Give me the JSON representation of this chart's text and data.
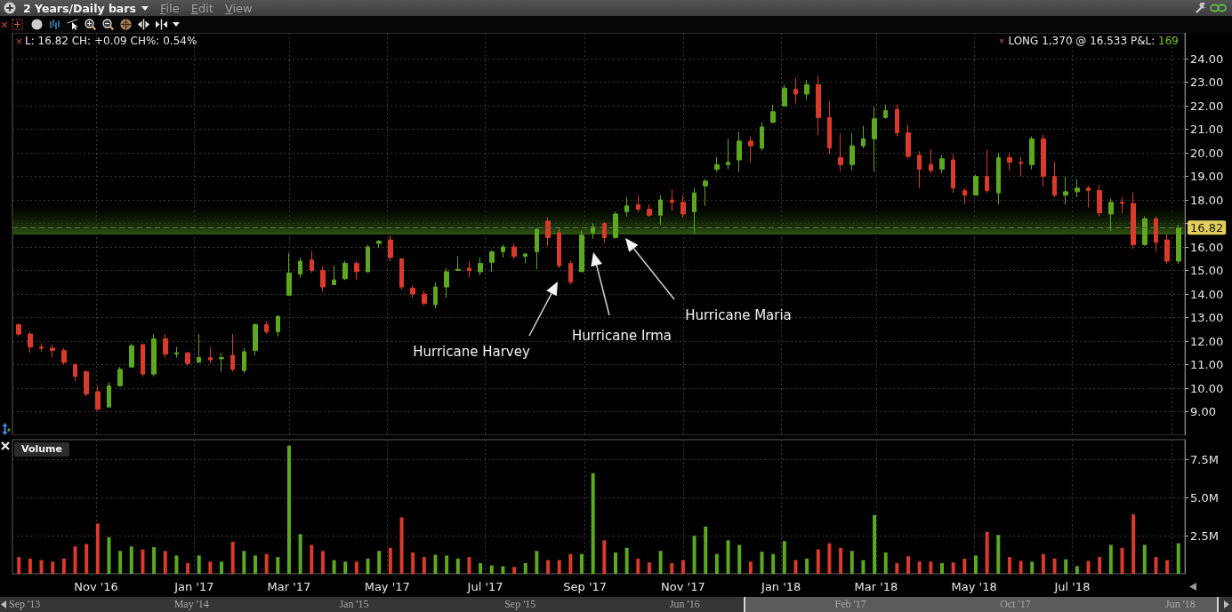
{
  "chart_data": [
    {
      "type": "candlestick",
      "title": "2 Years/Daily bars",
      "x": [
        "2016-09-14",
        "2016-09-21",
        "2016-09-28",
        "2016-10-05",
        "2016-10-12",
        "2016-10-19",
        "2016-10-26",
        "2016-11-02",
        "2016-11-09",
        "2016-11-16",
        "2016-11-23",
        "2016-11-30",
        "2016-12-07",
        "2016-12-14",
        "2016-12-21",
        "2016-12-28",
        "2017-01-04",
        "2017-01-11",
        "2017-01-18",
        "2017-01-25",
        "2017-02-01",
        "2017-02-08",
        "2017-02-15",
        "2017-02-22",
        "2017-03-01",
        "2017-03-08",
        "2017-03-15",
        "2017-03-22",
        "2017-03-29",
        "2017-04-05",
        "2017-04-12",
        "2017-04-19",
        "2017-04-26",
        "2017-05-03",
        "2017-05-10",
        "2017-05-17",
        "2017-05-24",
        "2017-05-31",
        "2017-06-07",
        "2017-06-14",
        "2017-06-21",
        "2017-06-28",
        "2017-07-05",
        "2017-07-12",
        "2017-07-19",
        "2017-07-26",
        "2017-08-02",
        "2017-08-09",
        "2017-08-16",
        "2017-08-23",
        "2017-08-30",
        "2017-09-06",
        "2017-09-13",
        "2017-09-20",
        "2017-09-27",
        "2017-10-04",
        "2017-10-11",
        "2017-10-18",
        "2017-10-25",
        "2017-11-01",
        "2017-11-08",
        "2017-11-15",
        "2017-11-22",
        "2017-11-29",
        "2017-12-06",
        "2017-12-13",
        "2017-12-20",
        "2017-12-27",
        "2018-01-03",
        "2018-01-10",
        "2018-01-17",
        "2018-01-24",
        "2018-01-31",
        "2018-02-07",
        "2018-02-14",
        "2018-02-21",
        "2018-02-28",
        "2018-03-07",
        "2018-03-14",
        "2018-03-21",
        "2018-03-28",
        "2018-04-04",
        "2018-04-11",
        "2018-04-18",
        "2018-04-25",
        "2018-05-02",
        "2018-05-09",
        "2018-05-16",
        "2018-05-23",
        "2018-05-30",
        "2018-06-06",
        "2018-06-13",
        "2018-06-20",
        "2018-06-27",
        "2018-07-04",
        "2018-07-11",
        "2018-07-18",
        "2018-07-25",
        "2018-08-01",
        "2018-08-08",
        "2018-08-15",
        "2018-08-22",
        "2018-08-29",
        "2018-09-05"
      ],
      "ohlc": [
        [
          12.7,
          12.75,
          12.2,
          12.3
        ],
        [
          12.3,
          12.4,
          11.5,
          11.75
        ],
        [
          11.75,
          11.9,
          11.55,
          11.7
        ],
        [
          11.7,
          11.85,
          11.3,
          11.6
        ],
        [
          11.6,
          11.7,
          11.0,
          11.1
        ],
        [
          11.0,
          11.05,
          10.3,
          10.5
        ],
        [
          10.7,
          10.75,
          9.65,
          9.75
        ],
        [
          9.85,
          10.1,
          9.06,
          9.1
        ],
        [
          9.2,
          10.25,
          9.2,
          10.1
        ],
        [
          10.1,
          10.9,
          10.1,
          10.8
        ],
        [
          10.9,
          11.9,
          10.9,
          11.8
        ],
        [
          11.85,
          11.9,
          10.5,
          10.6
        ],
        [
          10.6,
          12.3,
          10.5,
          12.1
        ],
        [
          12.1,
          12.3,
          11.3,
          11.45
        ],
        [
          11.45,
          11.75,
          11.3,
          11.5
        ],
        [
          11.5,
          11.55,
          10.95,
          11.05
        ],
        [
          11.1,
          12.3,
          11.1,
          11.3
        ],
        [
          11.3,
          11.75,
          11.05,
          11.2
        ],
        [
          11.25,
          11.5,
          10.7,
          11.3
        ],
        [
          11.4,
          12.3,
          10.7,
          10.8
        ],
        [
          10.75,
          11.7,
          10.65,
          11.55
        ],
        [
          11.6,
          12.75,
          11.4,
          12.7
        ],
        [
          12.7,
          12.85,
          12.3,
          12.4
        ],
        [
          12.4,
          13.1,
          12.2,
          13.05
        ],
        [
          13.95,
          15.75,
          13.95,
          14.9
        ],
        [
          14.85,
          15.55,
          14.7,
          15.4
        ],
        [
          15.45,
          15.82,
          14.9,
          15.0
        ],
        [
          15.0,
          15.15,
          14.1,
          14.3
        ],
        [
          14.4,
          15.2,
          14.4,
          14.6
        ],
        [
          14.65,
          15.4,
          14.6,
          15.3
        ],
        [
          15.3,
          15.4,
          14.6,
          14.95
        ],
        [
          14.95,
          16.1,
          14.9,
          16.0
        ],
        [
          16.15,
          16.3,
          15.95,
          16.25
        ],
        [
          16.3,
          16.5,
          15.4,
          15.55
        ],
        [
          15.5,
          15.5,
          14.2,
          14.3
        ],
        [
          14.25,
          14.35,
          13.85,
          14.0
        ],
        [
          14.0,
          14.15,
          13.5,
          13.6
        ],
        [
          13.55,
          14.5,
          13.4,
          14.3
        ],
        [
          14.3,
          15.1,
          13.85,
          14.95
        ],
        [
          15.0,
          15.6,
          15.0,
          15.05
        ],
        [
          15.1,
          15.4,
          14.7,
          15.0
        ],
        [
          14.95,
          15.55,
          14.8,
          15.3
        ],
        [
          15.35,
          15.85,
          14.95,
          15.8
        ],
        [
          15.8,
          16.1,
          15.55,
          16.0
        ],
        [
          16.0,
          16.15,
          15.5,
          15.6
        ],
        [
          15.6,
          15.75,
          15.3,
          15.7
        ],
        [
          15.8,
          16.8,
          15.05,
          16.75
        ],
        [
          17.1,
          17.25,
          16.05,
          16.4
        ],
        [
          16.6,
          16.8,
          15.1,
          15.2
        ],
        [
          15.3,
          15.42,
          14.41,
          14.5
        ],
        [
          14.95,
          16.7,
          14.95,
          16.5
        ],
        [
          16.6,
          17.0,
          16.35,
          16.85
        ],
        [
          17.0,
          17.05,
          16.17,
          16.4
        ],
        [
          16.4,
          17.5,
          16.35,
          17.4
        ],
        [
          17.5,
          18.12,
          17.3,
          17.75
        ],
        [
          17.8,
          18.2,
          17.5,
          17.6
        ],
        [
          17.6,
          17.8,
          17.3,
          17.35
        ],
        [
          17.35,
          18.2,
          16.95,
          18.0
        ],
        [
          18.0,
          18.45,
          17.55,
          17.9
        ],
        [
          17.9,
          18.2,
          17.24,
          17.4
        ],
        [
          17.5,
          18.5,
          16.55,
          18.3
        ],
        [
          18.6,
          18.9,
          17.75,
          18.8
        ],
        [
          19.3,
          19.82,
          19.2,
          19.5
        ],
        [
          19.5,
          20.6,
          19.3,
          19.6
        ],
        [
          19.7,
          20.9,
          19.2,
          20.5
        ],
        [
          20.5,
          20.7,
          19.6,
          20.3
        ],
        [
          20.2,
          21.3,
          20.1,
          21.1
        ],
        [
          21.3,
          22.05,
          21.25,
          21.75
        ],
        [
          22.0,
          22.9,
          21.95,
          22.75
        ],
        [
          22.7,
          23.17,
          22.1,
          22.5
        ],
        [
          22.5,
          23.1,
          22.25,
          22.9
        ],
        [
          22.9,
          23.28,
          20.75,
          21.5
        ],
        [
          21.5,
          22.2,
          19.95,
          20.2
        ],
        [
          19.8,
          20.83,
          19.19,
          19.5
        ],
        [
          19.5,
          20.83,
          19.26,
          20.3
        ],
        [
          20.3,
          21.15,
          20.2,
          20.6
        ],
        [
          20.6,
          21.96,
          19.19,
          21.45
        ],
        [
          21.5,
          22.05,
          21.45,
          21.8
        ],
        [
          21.85,
          22.06,
          20.7,
          20.85
        ],
        [
          20.85,
          21.2,
          19.75,
          19.85
        ],
        [
          19.9,
          20.07,
          18.5,
          19.3
        ],
        [
          19.5,
          20.15,
          19.13,
          19.25
        ],
        [
          19.3,
          19.9,
          19.13,
          19.75
        ],
        [
          19.7,
          19.95,
          18.3,
          18.5
        ],
        [
          18.4,
          18.5,
          17.81,
          18.2
        ],
        [
          18.2,
          19.07,
          18.2,
          19.0
        ],
        [
          19.0,
          20.13,
          18.3,
          18.4
        ],
        [
          18.3,
          20.0,
          17.81,
          19.8
        ],
        [
          19.8,
          20.0,
          19.25,
          19.6
        ],
        [
          19.6,
          19.82,
          19.0,
          19.55
        ],
        [
          19.5,
          20.7,
          19.3,
          20.6
        ],
        [
          20.6,
          20.77,
          18.57,
          19.0
        ],
        [
          19.0,
          19.63,
          18.12,
          18.2
        ],
        [
          18.2,
          19.0,
          17.81,
          18.35
        ],
        [
          18.35,
          18.88,
          18.12,
          18.5
        ],
        [
          18.5,
          18.6,
          17.68,
          18.4
        ],
        [
          18.4,
          18.63,
          17.31,
          17.45
        ],
        [
          17.4,
          18.06,
          16.68,
          17.9
        ],
        [
          17.9,
          18.12,
          17.43,
          17.85
        ],
        [
          17.85,
          18.31,
          15.92,
          16.1
        ],
        [
          16.1,
          17.31,
          16.05,
          17.2
        ],
        [
          17.2,
          17.3,
          15.8,
          16.2
        ],
        [
          16.3,
          16.55,
          15.29,
          15.4
        ],
        [
          15.4,
          16.93,
          15.29,
          16.82
        ]
      ],
      "colors": [
        "#d93a2b",
        "#d93a2b",
        "#d93a2b",
        "#d93a2b",
        "#d93a2b",
        "#d93a2b",
        "#d93a2b",
        "#d93a2b",
        "#5ca81e",
        "#5ca81e",
        "#5ca81e",
        "#d93a2b",
        "#5ca81e",
        "#d93a2b",
        "#5ca81e",
        "#d93a2b",
        "#5ca81e",
        "#d93a2b",
        "#5ca81e",
        "#d93a2b",
        "#5ca81e",
        "#5ca81e",
        "#d93a2b",
        "#5ca81e",
        "#5ca81e",
        "#5ca81e",
        "#d93a2b",
        "#d93a2b",
        "#5ca81e",
        "#5ca81e",
        "#d93a2b",
        "#5ca81e",
        "#5ca81e",
        "#d93a2b",
        "#d93a2b",
        "#d93a2b",
        "#d93a2b",
        "#5ca81e",
        "#5ca81e",
        "#5ca81e",
        "#d93a2b",
        "#5ca81e",
        "#5ca81e",
        "#5ca81e",
        "#d93a2b",
        "#5ca81e",
        "#5ca81e",
        "#d93a2b",
        "#d93a2b",
        "#d93a2b",
        "#5ca81e",
        "#5ca81e",
        "#d93a2b",
        "#5ca81e",
        "#5ca81e",
        "#d93a2b",
        "#d93a2b",
        "#5ca81e",
        "#d93a2b",
        "#d93a2b",
        "#5ca81e",
        "#5ca81e",
        "#5ca81e",
        "#5ca81e",
        "#5ca81e",
        "#d93a2b",
        "#5ca81e",
        "#5ca81e",
        "#5ca81e",
        "#d93a2b",
        "#5ca81e",
        "#d93a2b",
        "#d93a2b",
        "#d93a2b",
        "#5ca81e",
        "#5ca81e",
        "#5ca81e",
        "#5ca81e",
        "#d93a2b",
        "#d93a2b",
        "#d93a2b",
        "#d93a2b",
        "#5ca81e",
        "#d93a2b",
        "#d93a2b",
        "#5ca81e",
        "#d93a2b",
        "#5ca81e",
        "#d93a2b",
        "#d93a2b",
        "#5ca81e",
        "#d93a2b",
        "#d93a2b",
        "#5ca81e",
        "#5ca81e",
        "#d93a2b",
        "#d93a2b",
        "#5ca81e",
        "#d93a2b",
        "#d93a2b",
        "#5ca81e",
        "#d93a2b",
        "#d93a2b",
        "#5ca81e"
      ],
      "xlim": [
        "2016-09-10",
        "2018-09-09"
      ],
      "xticks": [
        {
          "value": "2016-11-01",
          "label": null
        },
        {
          "value": "2017-01-01",
          "label": null
        },
        {
          "value": "2017-03-01",
          "label": null
        },
        {
          "value": "2017-05-01",
          "label": null
        },
        {
          "value": "2017-07-01",
          "label": null
        },
        {
          "value": "2017-09-01",
          "label": null
        },
        {
          "value": "2017-11-01",
          "label": null
        },
        {
          "value": "2018-01-01",
          "label": null
        },
        {
          "value": "2018-03-01",
          "label": null
        },
        {
          "value": "2018-05-01",
          "label": null
        },
        {
          "value": "2018-07-01",
          "label": null
        },
        {
          "value": "2018-09-01",
          "label": null
        }
      ],
      "ylim": [
        8,
        25.1
      ],
      "yticks": [
        {
          "value": 9,
          "label": "9.00"
        },
        {
          "value": 10,
          "label": "10.00"
        },
        {
          "value": 11,
          "label": "11.00"
        },
        {
          "value": 12,
          "label": "12.00"
        },
        {
          "value": 13,
          "label": "13.00"
        },
        {
          "value": 14,
          "label": "14.00"
        },
        {
          "value": 15,
          "label": "15.00"
        },
        {
          "value": 16,
          "label": "16.00"
        },
        {
          "value": 17,
          "label": null
        },
        {
          "value": 18,
          "label": "18.00"
        },
        {
          "value": 19,
          "label": "19.00"
        },
        {
          "value": 20,
          "label": "20.00"
        },
        {
          "value": 21,
          "label": "21.00"
        },
        {
          "value": 22,
          "label": "22.00"
        },
        {
          "value": 23,
          "label": "23.00"
        },
        {
          "value": 24,
          "label": "24.00"
        }
      ],
      "grid": true,
      "tick_labels": "y",
      "ref_lines": [
        {
          "axis": "y",
          "value": 16.82,
          "label": "16.82",
          "line_style": "dashed",
          "color": "#56704a"
        }
      ],
      "bands": [
        {
          "axis": "y",
          "from": 16.533,
          "to": 18,
          "color": "#2f5512"
        }
      ],
      "annotations": [
        "Hurricane Harvey",
        "Hurricane Irma",
        "Hurricane Maria",
        "L: 16.82 CH: +0.09 CH%: 0.54%",
        "LONG 1,370 @ 16.533 P&L: 169",
        "File",
        "Edit",
        "View"
      ]
    },
    {
      "type": "bar",
      "title": "Volume",
      "x": [
        "2016-09-14",
        "2016-09-21",
        "2016-09-28",
        "2016-10-05",
        "2016-10-12",
        "2016-10-19",
        "2016-10-26",
        "2016-11-02",
        "2016-11-09",
        "2016-11-16",
        "2016-11-23",
        "2016-11-30",
        "2016-12-07",
        "2016-12-14",
        "2016-12-21",
        "2016-12-28",
        "2017-01-04",
        "2017-01-11",
        "2017-01-18",
        "2017-01-25",
        "2017-02-01",
        "2017-02-08",
        "2017-02-15",
        "2017-02-22",
        "2017-03-01",
        "2017-03-08",
        "2017-03-15",
        "2017-03-22",
        "2017-03-29",
        "2017-04-05",
        "2017-04-12",
        "2017-04-19",
        "2017-04-26",
        "2017-05-03",
        "2017-05-10",
        "2017-05-17",
        "2017-05-24",
        "2017-05-31",
        "2017-06-07",
        "2017-06-14",
        "2017-06-21",
        "2017-06-28",
        "2017-07-05",
        "2017-07-12",
        "2017-07-19",
        "2017-07-26",
        "2017-08-02",
        "2017-08-09",
        "2017-08-16",
        "2017-08-23",
        "2017-08-30",
        "2017-09-06",
        "2017-09-13",
        "2017-09-20",
        "2017-09-27",
        "2017-10-04",
        "2017-10-11",
        "2017-10-18",
        "2017-10-25",
        "2017-11-01",
        "2017-11-08",
        "2017-11-15",
        "2017-11-22",
        "2017-11-29",
        "2017-12-06",
        "2017-12-13",
        "2017-12-20",
        "2017-12-27",
        "2018-01-03",
        "2018-01-10",
        "2018-01-17",
        "2018-01-24",
        "2018-01-31",
        "2018-02-07",
        "2018-02-14",
        "2018-02-21",
        "2018-02-28",
        "2018-03-07",
        "2018-03-14",
        "2018-03-21",
        "2018-03-28",
        "2018-04-04",
        "2018-04-11",
        "2018-04-18",
        "2018-04-25",
        "2018-05-02",
        "2018-05-09",
        "2018-05-16",
        "2018-05-23",
        "2018-05-30",
        "2018-06-06",
        "2018-06-13",
        "2018-06-20",
        "2018-06-27",
        "2018-07-04",
        "2018-07-11",
        "2018-07-18",
        "2018-07-25",
        "2018-08-01",
        "2018-08-08",
        "2018-08-15",
        "2018-08-22",
        "2018-08-29",
        "2018-09-05"
      ],
      "values": [
        1100000,
        1000000,
        900000,
        800000,
        1000000,
        1800000,
        1950000,
        3300000,
        2400000,
        1500000,
        1800000,
        1600000,
        1750000,
        1500000,
        1200000,
        700000,
        1200000,
        800000,
        800000,
        2100000,
        1500000,
        1200000,
        1300000,
        1100000,
        8400000,
        2600000,
        1900000,
        1500000,
        900000,
        800000,
        800000,
        1000000,
        1500000,
        1700000,
        3700000,
        1400000,
        1100000,
        1250000,
        1200000,
        1000000,
        1100000,
        700000,
        550000,
        500000,
        450000,
        700000,
        1500000,
        900000,
        900000,
        1300000,
        1300000,
        6600000,
        2200000,
        1400000,
        1700000,
        1000000,
        750000,
        1500000,
        700000,
        900000,
        2500000,
        3100000,
        1300000,
        2200000,
        1900000,
        800000,
        1450000,
        1300000,
        2150000,
        900000,
        1000000,
        1600000,
        2000000,
        1700000,
        1500000,
        900000,
        3850000,
        1400000,
        700000,
        1150000,
        800000,
        800000,
        700000,
        750000,
        1000000,
        1200000,
        2750000,
        2550000,
        1100000,
        850000,
        800000,
        1300000,
        1000000,
        950000,
        500000,
        850000,
        1100000,
        1900000,
        1700000,
        3900000,
        1900000,
        1100000,
        900000,
        2000000
      ],
      "colors": [
        "#d93a2b",
        "#d93a2b",
        "#d93a2b",
        "#d93a2b",
        "#d93a2b",
        "#d93a2b",
        "#d93a2b",
        "#d93a2b",
        "#5ca81e",
        "#5ca81e",
        "#5ca81e",
        "#d93a2b",
        "#5ca81e",
        "#d93a2b",
        "#5ca81e",
        "#d93a2b",
        "#5ca81e",
        "#d93a2b",
        "#5ca81e",
        "#d93a2b",
        "#5ca81e",
        "#5ca81e",
        "#d93a2b",
        "#5ca81e",
        "#5ca81e",
        "#5ca81e",
        "#d93a2b",
        "#d93a2b",
        "#5ca81e",
        "#5ca81e",
        "#d93a2b",
        "#5ca81e",
        "#5ca81e",
        "#d93a2b",
        "#d93a2b",
        "#d93a2b",
        "#d93a2b",
        "#5ca81e",
        "#5ca81e",
        "#5ca81e",
        "#d93a2b",
        "#5ca81e",
        "#5ca81e",
        "#5ca81e",
        "#d93a2b",
        "#5ca81e",
        "#5ca81e",
        "#d93a2b",
        "#d93a2b",
        "#d93a2b",
        "#5ca81e",
        "#5ca81e",
        "#d93a2b",
        "#5ca81e",
        "#5ca81e",
        "#d93a2b",
        "#d93a2b",
        "#5ca81e",
        "#d93a2b",
        "#d93a2b",
        "#5ca81e",
        "#5ca81e",
        "#5ca81e",
        "#5ca81e",
        "#5ca81e",
        "#d93a2b",
        "#5ca81e",
        "#5ca81e",
        "#5ca81e",
        "#d93a2b",
        "#5ca81e",
        "#d93a2b",
        "#d93a2b",
        "#d93a2b",
        "#5ca81e",
        "#5ca81e",
        "#5ca81e",
        "#5ca81e",
        "#d93a2b",
        "#d93a2b",
        "#d93a2b",
        "#d93a2b",
        "#5ca81e",
        "#d93a2b",
        "#d93a2b",
        "#5ca81e",
        "#d93a2b",
        "#5ca81e",
        "#d93a2b",
        "#d93a2b",
        "#5ca81e",
        "#d93a2b",
        "#d93a2b",
        "#5ca81e",
        "#5ca81e",
        "#d93a2b",
        "#d93a2b",
        "#5ca81e",
        "#d93a2b",
        "#d93a2b",
        "#5ca81e",
        "#d93a2b",
        "#d93a2b",
        "#5ca81e"
      ],
      "xlim": [
        "2016-09-10",
        "2018-09-09"
      ],
      "xticks": [
        {
          "value": "2016-11-01",
          "label": "Nov '16"
        },
        {
          "value": "2017-01-01",
          "label": "Jan '17"
        },
        {
          "value": "2017-03-01",
          "label": "Mar '17"
        },
        {
          "value": "2017-05-01",
          "label": "May '17"
        },
        {
          "value": "2017-07-01",
          "label": "Jul '17"
        },
        {
          "value": "2017-09-01",
          "label": "Sep '17"
        },
        {
          "value": "2017-11-01",
          "label": "Nov '17"
        },
        {
          "value": "2018-01-01",
          "label": "Jan '18"
        },
        {
          "value": "2018-03-01",
          "label": "Mar '18"
        },
        {
          "value": "2018-05-01",
          "label": "May '18"
        },
        {
          "value": "2018-07-01",
          "label": "Jul '18"
        },
        {
          "value": "2018-09-01",
          "label": null
        }
      ],
      "ylim": [
        0,
        8800000
      ],
      "yticks": [
        {
          "value": 2500000,
          "label": "2.5M"
        },
        {
          "value": 5000000,
          "label": "5.0M"
        },
        {
          "value": 7500000,
          "label": "7.5M"
        }
      ],
      "grid": true
    },
    {
      "type": "other",
      "categories": [
        "Sep '13",
        "May '14",
        "Jan '15",
        "Sep '15",
        "Jun '16",
        "Feb '17",
        "Oct '17",
        "Jun '18"
      ]
    }
  ]
}
